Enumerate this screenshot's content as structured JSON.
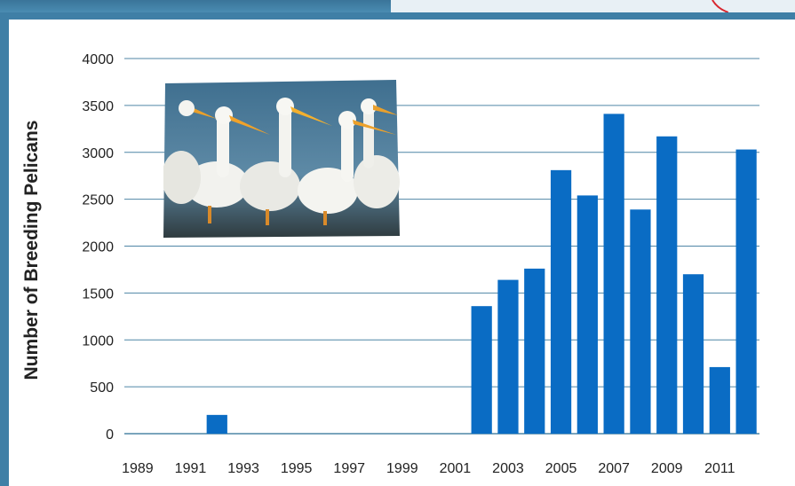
{
  "colors": {
    "background": "#3f7fa6",
    "bar": "#0a6cc4",
    "grid": "#4f86a6",
    "panel": "#ffffff",
    "accent_red": "#d8262e"
  },
  "photo": {
    "subject": "white pelicans on water",
    "icon": "pelican-photo"
  },
  "chart_data": {
    "type": "bar",
    "ylabel": "Number of Breeding Pelicans",
    "xlabel": "",
    "ylim": [
      0,
      4000
    ],
    "yticks": [
      0,
      500,
      1000,
      1500,
      2000,
      2500,
      3000,
      3500,
      4000
    ],
    "categories": [
      1989,
      1990,
      1991,
      1992,
      1993,
      1994,
      1995,
      1996,
      1997,
      1998,
      1999,
      2000,
      2001,
      2002,
      2003,
      2004,
      2005,
      2006,
      2007,
      2008,
      2009,
      2010,
      2011,
      2012
    ],
    "values": [
      0,
      0,
      0,
      200,
      0,
      0,
      0,
      0,
      0,
      0,
      0,
      0,
      0,
      1360,
      1640,
      1760,
      2810,
      2540,
      3410,
      2390,
      3170,
      1700,
      710,
      3030
    ],
    "xtick_labels": [
      "1989",
      "1991",
      "1993",
      "1995",
      "1997",
      "1999",
      "2001",
      "2003",
      "2005",
      "2007",
      "2009",
      "2011"
    ],
    "grid": true,
    "legend": "none"
  }
}
